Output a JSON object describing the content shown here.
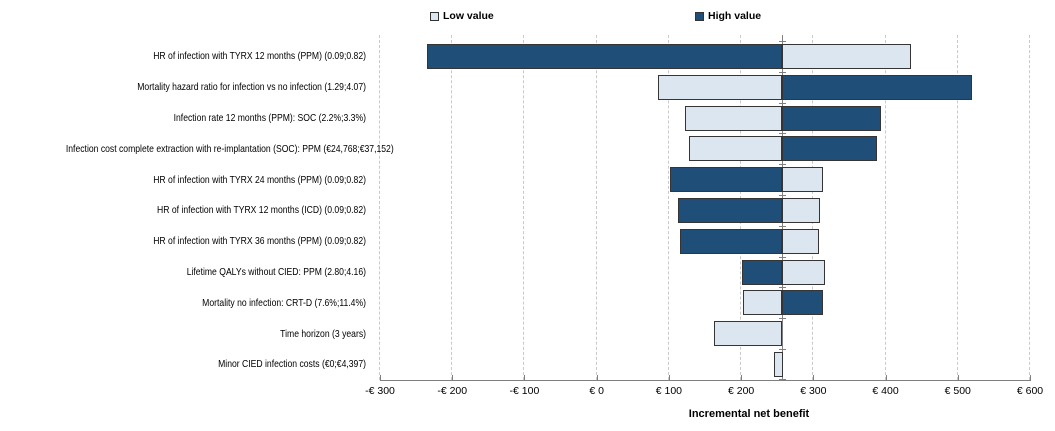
{
  "chart_data": {
    "type": "bar",
    "variant": "tornado",
    "orientation": "horizontal",
    "title": "",
    "xlabel": "Incremental net benefit",
    "ylabel": "",
    "xlim": [
      -300,
      600
    ],
    "baseline": 257,
    "grid": "vertical-dashed",
    "legend_position": "top",
    "legend": [
      {
        "name": "Low value",
        "color": "#dce6f1"
      },
      {
        "name": "High value",
        "color": "#1f4e79"
      }
    ],
    "x_ticks": [
      {
        "value": -300,
        "label": "-€ 300"
      },
      {
        "value": -200,
        "label": "-€ 200"
      },
      {
        "value": -100,
        "label": "-€ 100"
      },
      {
        "value": 0,
        "label": "€ 0"
      },
      {
        "value": 100,
        "label": "€ 100"
      },
      {
        "value": 200,
        "label": "€ 200"
      },
      {
        "value": 300,
        "label": "€ 300"
      },
      {
        "value": 400,
        "label": "€ 400"
      },
      {
        "value": 500,
        "label": "€ 500"
      },
      {
        "value": 600,
        "label": "€ 600"
      }
    ],
    "rows": [
      {
        "label": "HR of infection with TYRX 12 months (PPM) (0.09;0.82)",
        "low": {
          "from": 257,
          "to": 435
        },
        "high": {
          "from": -235,
          "to": 257
        }
      },
      {
        "label": "Mortality hazard ratio for infection vs no infection (1.29;4.07)",
        "low": {
          "from": 85,
          "to": 257
        },
        "high": {
          "from": 257,
          "to": 520
        }
      },
      {
        "label": "Infection rate 12 months (PPM): SOC (2.2%;3.3%)",
        "low": {
          "from": 122,
          "to": 257
        },
        "high": {
          "from": 257,
          "to": 394
        }
      },
      {
        "label": "Infection cost complete extraction with re-implantation (SOC): PPM (€24,768;€37,152)",
        "low": {
          "from": 128,
          "to": 257
        },
        "high": {
          "from": 257,
          "to": 388
        }
      },
      {
        "label": "HR of infection with TYRX 24 months (PPM) (0.09;0.82)",
        "low": {
          "from": 257,
          "to": 313
        },
        "high": {
          "from": 101,
          "to": 257
        }
      },
      {
        "label": "HR of infection with TYRX 12 months (ICD) (0.09;0.82)",
        "low": {
          "from": 257,
          "to": 309
        },
        "high": {
          "from": 112,
          "to": 257
        }
      },
      {
        "label": "HR of infection with TYRX 36 months (PPM) (0.09;0.82)",
        "low": {
          "from": 257,
          "to": 308
        },
        "high": {
          "from": 115,
          "to": 257
        }
      },
      {
        "label": "Lifetime QALYs without CIED: PPM (2.80;4.16)",
        "low": {
          "from": 257,
          "to": 316
        },
        "high": {
          "from": 201,
          "to": 257
        }
      },
      {
        "label": "Mortality no infection: CRT-D (7.6%;11.4%)",
        "low": {
          "from": 203,
          "to": 257
        },
        "high": {
          "from": 257,
          "to": 313
        }
      },
      {
        "label": "Time horizon (3 years)",
        "low": {
          "from": 162,
          "to": 257
        },
        "high": null
      },
      {
        "label": "Minor CIED infection costs (€0;€4,397)",
        "low": {
          "from": 246,
          "to": 258
        },
        "high": null
      }
    ]
  }
}
